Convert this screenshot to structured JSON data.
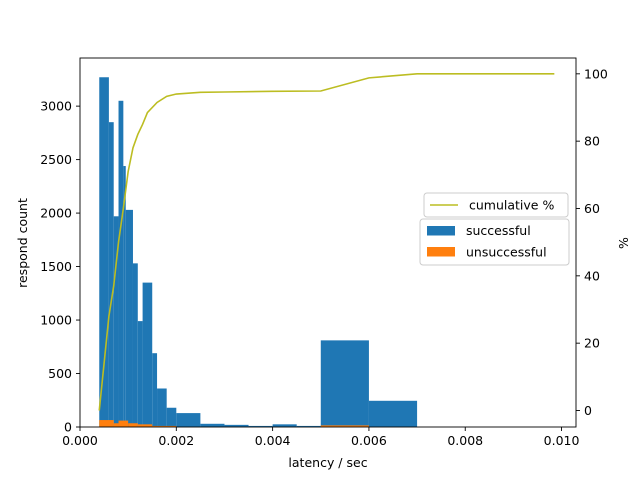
{
  "chart_data": {
    "type": "bar",
    "title": "",
    "xlabel": "latency / sec",
    "ylabel": "respond count",
    "y2label": "%",
    "xlim": [
      -0.0,
      0.0103
    ],
    "ylim": [
      0,
      3450
    ],
    "y2lim": [
      -4.9,
      104.7
    ],
    "xticks": [
      "0.000",
      "0.002",
      "0.004",
      "0.006",
      "0.008",
      "0.010"
    ],
    "xtick_values": [
      0.0,
      0.002,
      0.004,
      0.006,
      0.008,
      0.01
    ],
    "yticks": [
      "0",
      "500",
      "1000",
      "1500",
      "2000",
      "2500",
      "3000"
    ],
    "ytick_values": [
      0,
      500,
      1000,
      1500,
      2000,
      2500,
      3000
    ],
    "y2ticks": [
      "0",
      "20",
      "40",
      "60",
      "80",
      "100"
    ],
    "y2tick_values": [
      0,
      20,
      40,
      60,
      80,
      100
    ],
    "grid": false,
    "colors": {
      "successful": "#1f77b4",
      "unsuccessful": "#ff7f0e",
      "cumulative": "#bcbd22"
    },
    "series": [
      {
        "name": "successful",
        "type": "bar",
        "bins": [
          {
            "x0": 0.0004,
            "x1": 0.0006,
            "y": 3270
          },
          {
            "x0": 0.0006,
            "x1": 0.0007,
            "y": 2850
          },
          {
            "x0": 0.0007,
            "x1": 0.0008,
            "y": 1970
          },
          {
            "x0": 0.0008,
            "x1": 0.0009,
            "y": 3050
          },
          {
            "x0": 0.0009,
            "x1": 0.00095,
            "y": 2440
          },
          {
            "x0": 0.00095,
            "x1": 0.0011,
            "y": 2030
          },
          {
            "x0": 0.0011,
            "x1": 0.0012,
            "y": 1530
          },
          {
            "x0": 0.0012,
            "x1": 0.0013,
            "y": 990
          },
          {
            "x0": 0.0013,
            "x1": 0.0015,
            "y": 1350
          },
          {
            "x0": 0.0015,
            "x1": 0.0016,
            "y": 690
          },
          {
            "x0": 0.0016,
            "x1": 0.0018,
            "y": 360
          },
          {
            "x0": 0.0018,
            "x1": 0.002,
            "y": 180
          },
          {
            "x0": 0.002,
            "x1": 0.0025,
            "y": 130
          },
          {
            "x0": 0.0025,
            "x1": 0.003,
            "y": 30
          },
          {
            "x0": 0.003,
            "x1": 0.0035,
            "y": 20
          },
          {
            "x0": 0.0035,
            "x1": 0.004,
            "y": 10
          },
          {
            "x0": 0.004,
            "x1": 0.0045,
            "y": 25
          },
          {
            "x0": 0.0045,
            "x1": 0.005,
            "y": 10
          },
          {
            "x0": 0.005,
            "x1": 0.006,
            "y": 810
          },
          {
            "x0": 0.006,
            "x1": 0.007,
            "y": 245
          }
        ]
      },
      {
        "name": "unsuccessful",
        "type": "bar",
        "bins": [
          {
            "x0": 0.0004,
            "x1": 0.0007,
            "y": 65
          },
          {
            "x0": 0.0007,
            "x1": 0.0008,
            "y": 35
          },
          {
            "x0": 0.0008,
            "x1": 0.001,
            "y": 60
          },
          {
            "x0": 0.001,
            "x1": 0.0012,
            "y": 35
          },
          {
            "x0": 0.0012,
            "x1": 0.0015,
            "y": 25
          },
          {
            "x0": 0.0015,
            "x1": 0.002,
            "y": 10
          },
          {
            "x0": 0.005,
            "x1": 0.006,
            "y": 15
          }
        ]
      },
      {
        "name": "cumulative %",
        "type": "line",
        "axis": "y2",
        "x": [
          0.0004,
          0.0005,
          0.0006,
          0.0007,
          0.0008,
          0.0009,
          0.001,
          0.0011,
          0.0012,
          0.0013,
          0.0014,
          0.0016,
          0.0018,
          0.002,
          0.0025,
          0.003,
          0.004,
          0.005,
          0.006,
          0.007,
          0.00985
        ],
        "values": [
          0,
          14,
          28,
          37,
          50,
          60,
          71,
          78,
          82,
          85,
          88.5,
          91.5,
          93.3,
          94.0,
          94.5,
          94.6,
          94.8,
          94.9,
          98.8,
          100,
          100
        ]
      }
    ],
    "legend": [
      {
        "label": "cumulative %",
        "kind": "line",
        "position": "right-center"
      },
      {
        "label": "successful",
        "kind": "patch",
        "position": "right-center"
      },
      {
        "label": "unsuccessful",
        "kind": "patch",
        "position": "right-center"
      }
    ]
  }
}
